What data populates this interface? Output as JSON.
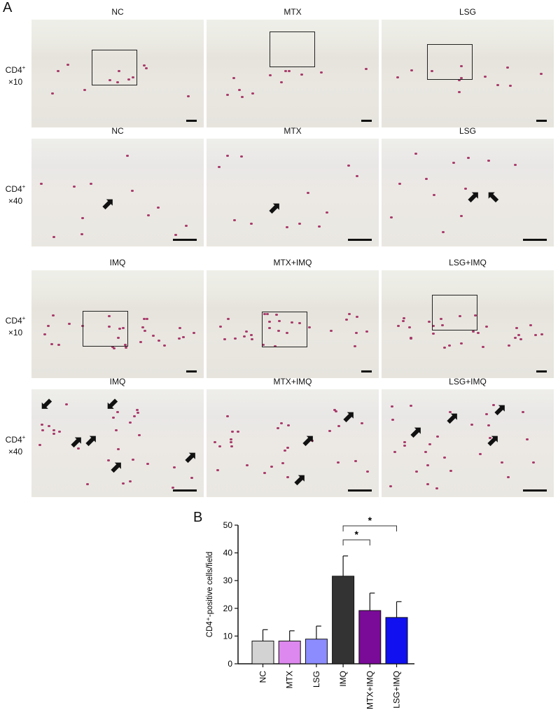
{
  "panel_labels": {
    "a": "A",
    "b": "B"
  },
  "panel_a": {
    "rows": [
      {
        "label_main": "CD4",
        "label_sup": "+",
        "label_mag": "×10",
        "titles": [
          "NC",
          "MTX",
          "LSG"
        ],
        "magnification": "x10"
      },
      {
        "label_main": "CD4",
        "label_sup": "+",
        "label_mag": "×40",
        "titles": [
          "NC",
          "MTX",
          "LSG"
        ],
        "magnification": "x40"
      },
      {
        "label_main": "CD4",
        "label_sup": "+",
        "label_mag": "×10",
        "titles": [
          "IMQ",
          "MTX+IMQ",
          "LSG+IMQ"
        ],
        "magnification": "x10"
      },
      {
        "label_main": "CD4",
        "label_sup": "+",
        "label_mag": "×40",
        "titles": [
          "IMQ",
          "MTX+IMQ",
          "LSG+IMQ"
        ],
        "magnification": "x40"
      }
    ]
  },
  "chart_data": {
    "type": "bar",
    "categories": [
      "NC",
      "MTX",
      "LSG",
      "IMQ",
      "MTX+IMQ",
      "LSG+IMQ"
    ],
    "values": [
      8.2,
      8.2,
      8.9,
      31.6,
      19.2,
      16.7
    ],
    "error_upper": [
      4.1,
      3.7,
      4.7,
      7.3,
      6.3,
      5.7
    ],
    "colors": [
      "#d3d3d3",
      "#dd88ee",
      "#8c8cff",
      "#333333",
      "#7a0a98",
      "#1010f0"
    ],
    "ylabel": "CD4⁺-positive cells/field",
    "ylim": [
      0,
      50
    ],
    "yticks": [
      0,
      10,
      20,
      30,
      40,
      50
    ],
    "grid": false,
    "significance": [
      {
        "from": "IMQ",
        "to": "MTX+IMQ",
        "label": "*"
      },
      {
        "from": "IMQ",
        "to": "LSG+IMQ",
        "label": "*"
      }
    ]
  }
}
